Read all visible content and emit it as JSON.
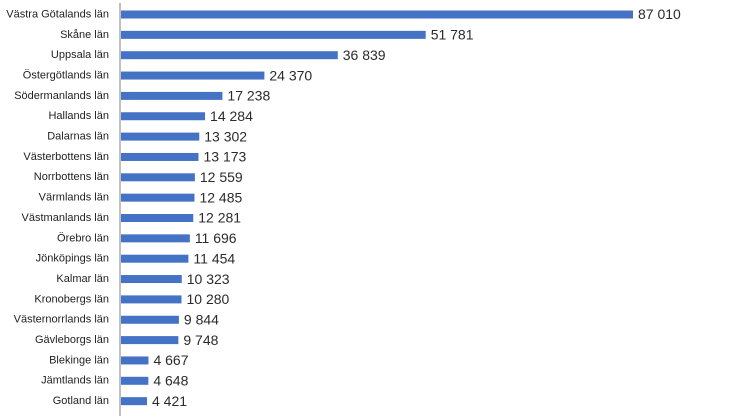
{
  "chart_data": {
    "type": "bar",
    "orientation": "horizontal",
    "title": "",
    "xlabel": "",
    "ylabel": "",
    "grid": false,
    "legend": "none",
    "bar_color": "#4472c4",
    "categories": [
      "Västra Götalands län",
      "Skåne län",
      "Uppsala län",
      "Östergötlands län",
      "Södermanlands län",
      "Hallands län",
      "Dalarnas län",
      "Västerbottens län",
      "Norrbottens län",
      "Värmlands län",
      "Västmanlands län",
      "Örebro län",
      "Jönköpings län",
      "Kalmar län",
      "Kronobergs län",
      "Västernorrlands län",
      "Gävleborgs län",
      "Blekinge län",
      "Jämtlands län",
      "Gotland län"
    ],
    "values": [
      87010,
      51781,
      36839,
      24370,
      17238,
      14284,
      13302,
      13173,
      12559,
      12485,
      12281,
      11696,
      11454,
      10323,
      10280,
      9844,
      9748,
      4667,
      4648,
      4421
    ],
    "value_labels": [
      "87 010",
      "51 781",
      "36 839",
      "24 370",
      "17 238",
      "14 284",
      "13 302",
      "13 173",
      "12 559",
      "12 485",
      "12 281",
      "11 696",
      "11 454",
      "10 323",
      "10 280",
      "9 844",
      "9 748",
      "4 667",
      "4 648",
      "4 421"
    ],
    "xlim": [
      0,
      87010
    ]
  }
}
